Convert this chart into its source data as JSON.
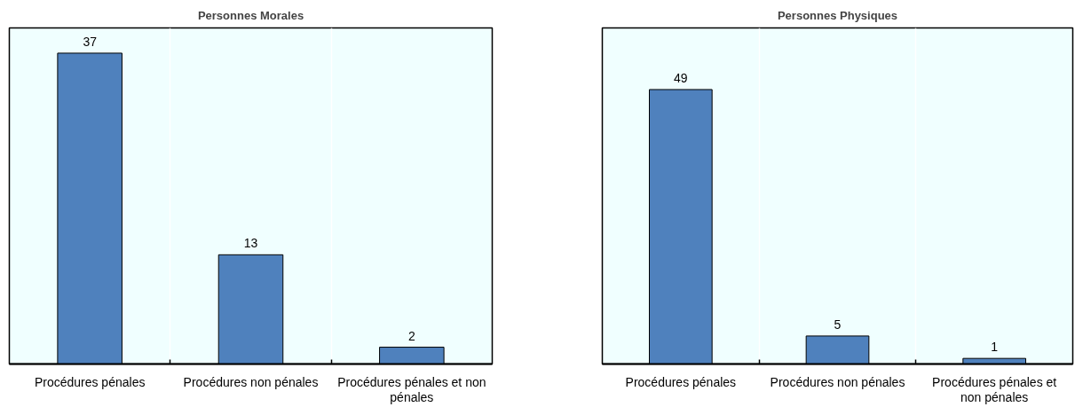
{
  "chart_data": [
    {
      "type": "bar",
      "title": "Personnes Morales",
      "categories": [
        "Procédures pénales",
        "Procédures non pénales",
        "Procédures pénales et non pénales"
      ],
      "values": [
        37,
        13,
        2
      ],
      "color": "#4f81bd",
      "ylim": [
        0,
        40
      ],
      "data_labels": true,
      "grid": "x",
      "tick_labels": "x"
    },
    {
      "type": "bar",
      "title": "Personnes Physiques",
      "categories": [
        "Procédures pénales",
        "Procédures non pénales",
        "Procédures pénales et non pénales"
      ],
      "values": [
        49,
        5,
        1
      ],
      "color": "#4f81bd",
      "ylim": [
        0,
        60
      ],
      "data_labels": true,
      "grid": "x",
      "tick_labels": "x"
    }
  ]
}
